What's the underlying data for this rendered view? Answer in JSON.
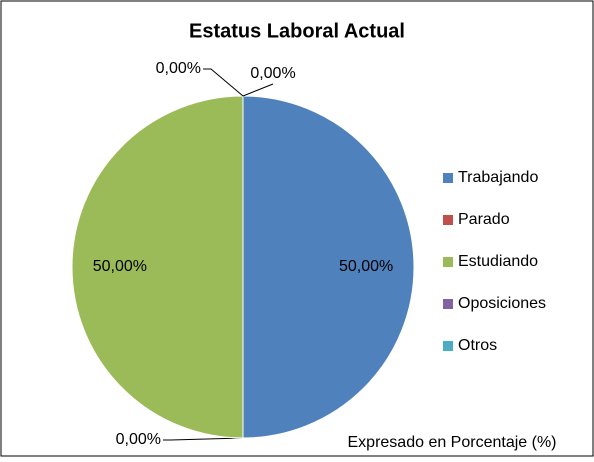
{
  "chart_data": {
    "type": "pie",
    "title": "Estatus Laboral Actual",
    "categories": [
      "Trabajando",
      "Parado",
      "Estudiando",
      "Oposiciones",
      "Otros"
    ],
    "values": [
      50,
      0,
      50,
      0,
      0
    ],
    "value_labels": [
      "50,00%",
      "0,00%",
      "50,00%",
      "0,00%",
      "0,00%"
    ],
    "colors": [
      "#4f81bd",
      "#c0504d",
      "#9bbb59",
      "#8064a2",
      "#4bacc6"
    ],
    "legend": "right",
    "annotation": "Expresado en Porcentaje (%)"
  }
}
